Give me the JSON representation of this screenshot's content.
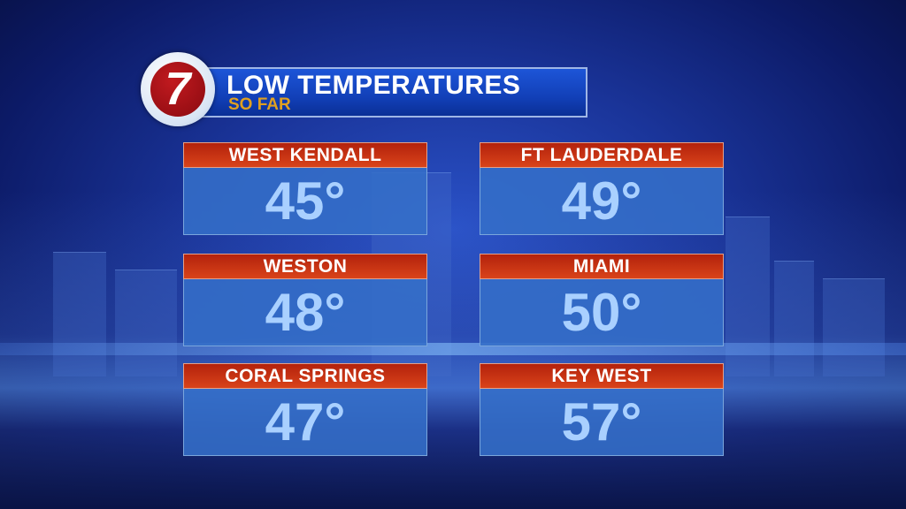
{
  "header": {
    "logo_text": "7",
    "title": "LOW TEMPERATURES",
    "subtitle": "SO FAR"
  },
  "locations": [
    {
      "name": "WEST KENDALL",
      "temp": "45°"
    },
    {
      "name": "FT LAUDERDALE",
      "temp": "49°"
    },
    {
      "name": "WESTON",
      "temp": "48°"
    },
    {
      "name": "MIAMI",
      "temp": "50°"
    },
    {
      "name": "CORAL SPRINGS",
      "temp": "47°"
    },
    {
      "name": "KEY WEST",
      "temp": "57°"
    }
  ],
  "colors": {
    "header_red": "#c0300f",
    "value_text": "#a9d0ff",
    "subtitle": "#e0a020"
  }
}
